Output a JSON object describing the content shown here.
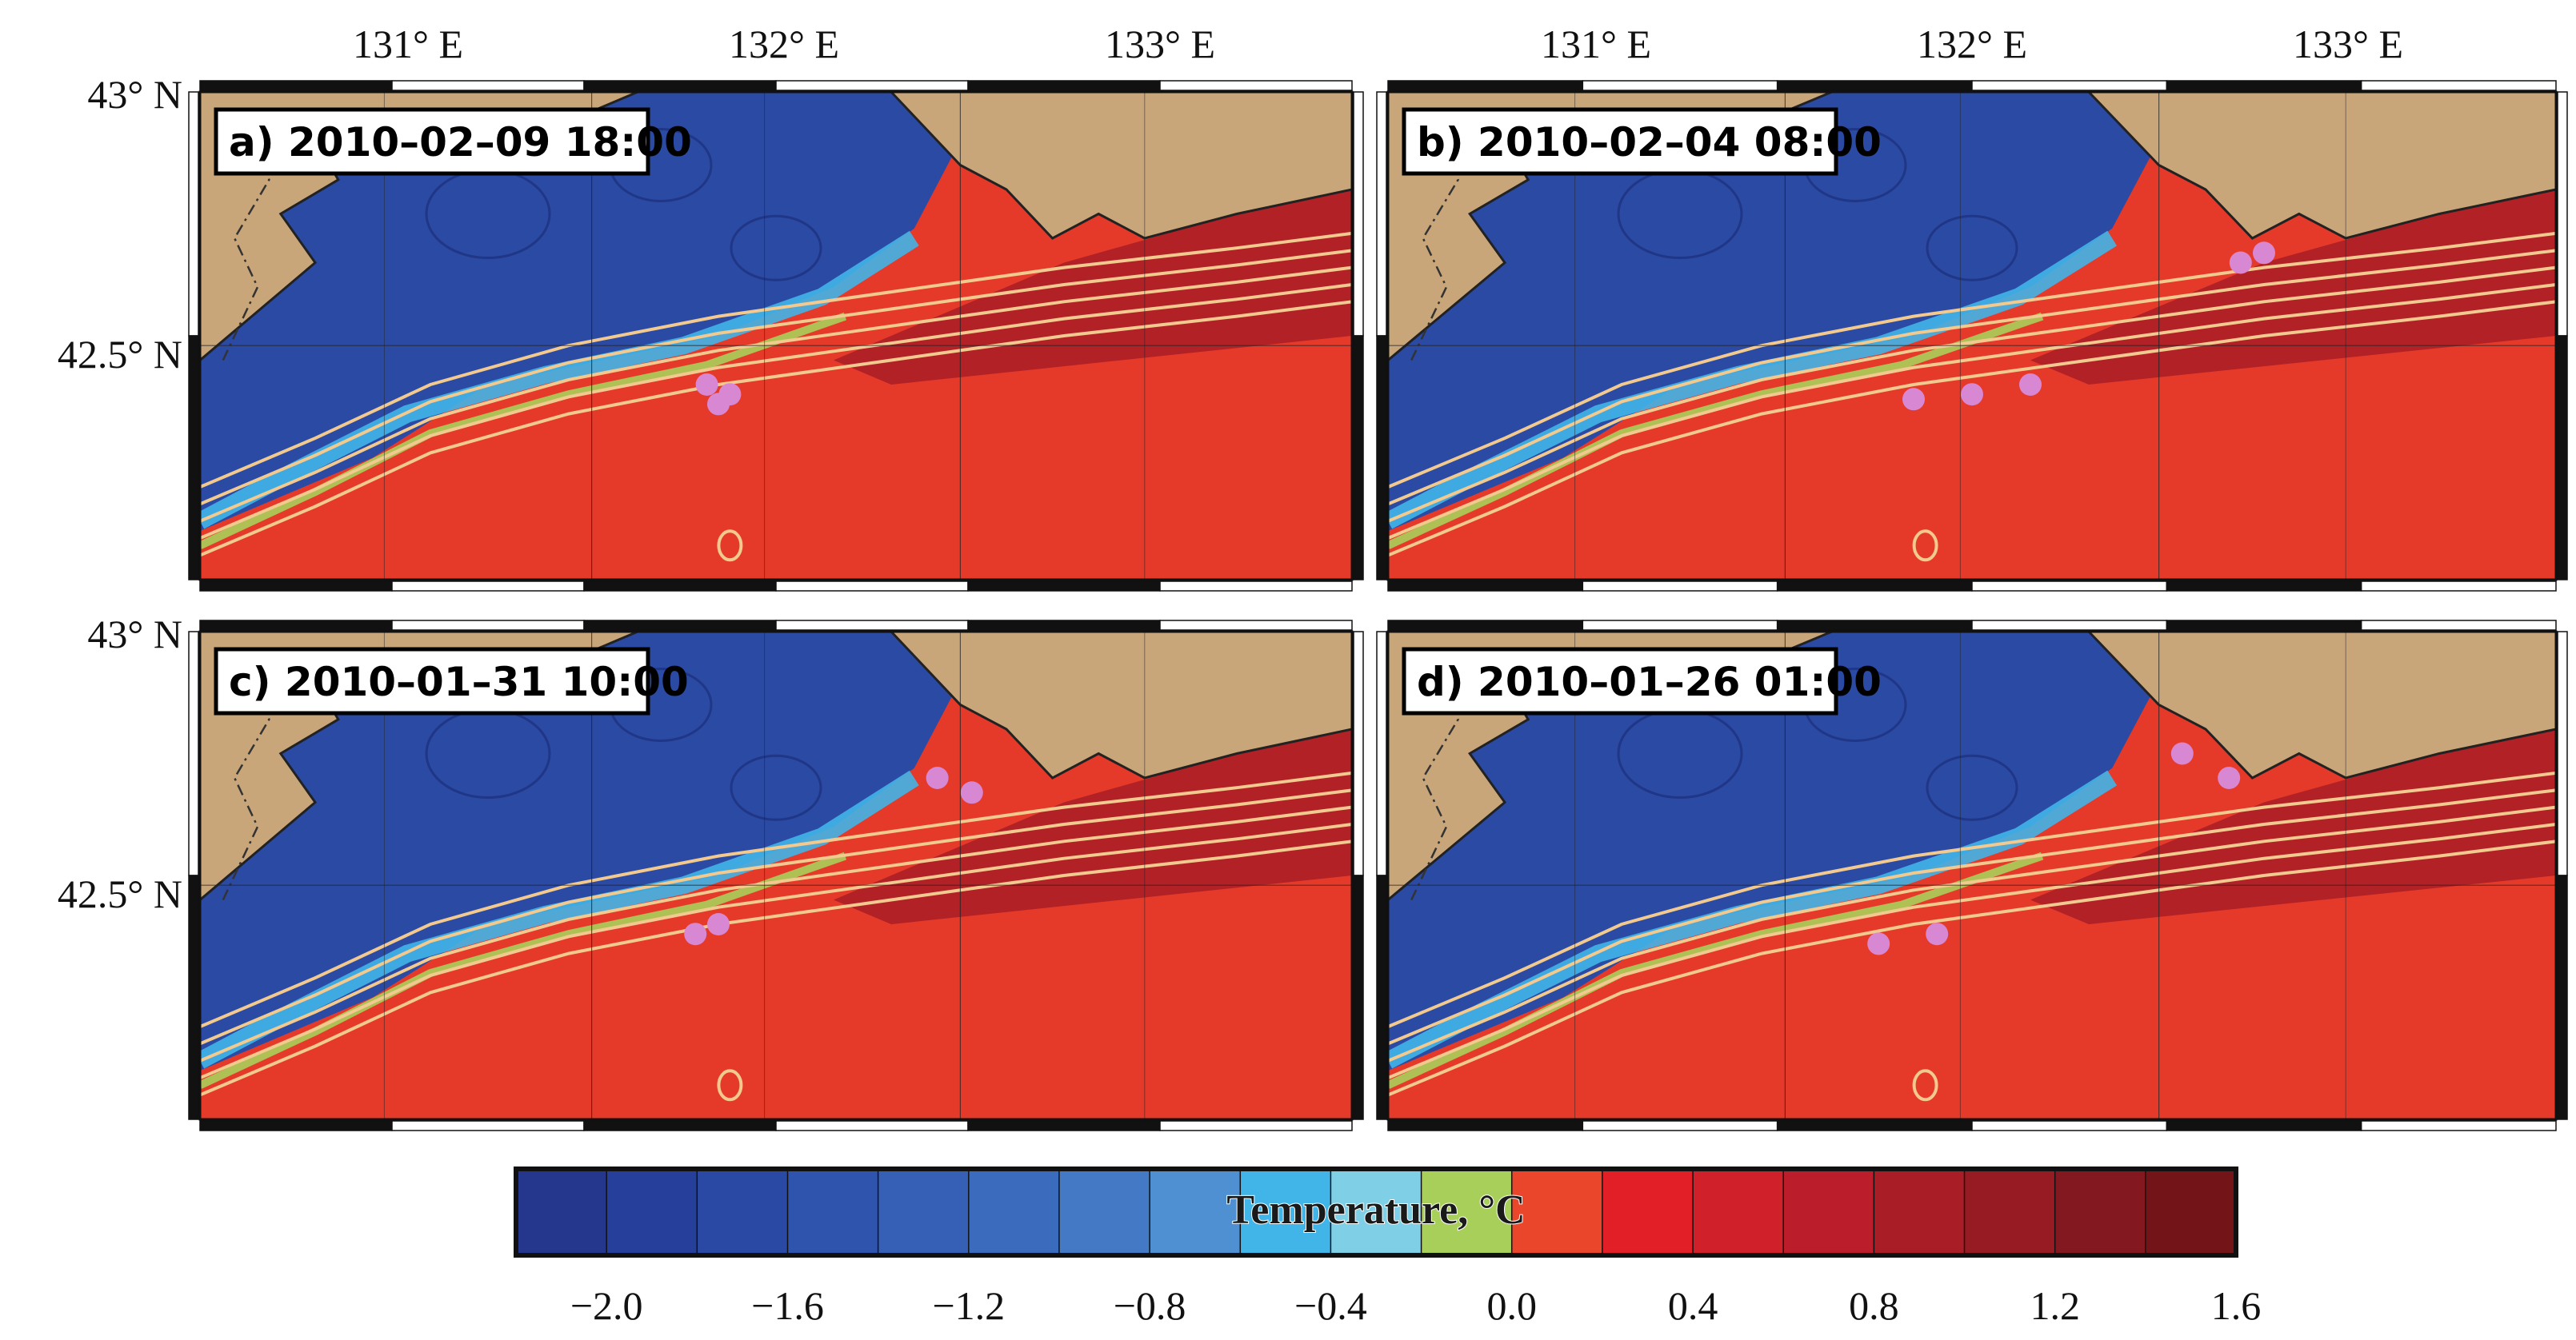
{
  "figure": {
    "longitude_ticks": [
      "131° E",
      "132° E",
      "133° E"
    ],
    "latitude_ticks": [
      "43° N",
      "42.5° N"
    ]
  },
  "panels": [
    {
      "id": "a",
      "label": "a) 2010–02–09 18:00"
    },
    {
      "id": "b",
      "label": "b) 2010–02–04 08:00"
    },
    {
      "id": "c",
      "label": "c) 2010–01–31 10:00"
    },
    {
      "id": "d",
      "label": "d) 2010–01–26 01:00"
    }
  ],
  "colorbar": {
    "title": "Temperature, °C",
    "tick_labels": [
      "−2.0",
      "−1.6",
      "−1.2",
      "−0.8",
      "−0.4",
      "0.0",
      "0.4",
      "0.8",
      "1.2",
      "1.6"
    ],
    "min": -2.2,
    "max": 1.6,
    "step": 0.2,
    "colors": [
      "#25378d",
      "#263f9a",
      "#2a49a4",
      "#2e54ad",
      "#3560b5",
      "#3b6bbd",
      "#4479c5",
      "#4f90d2",
      "#41b5e8",
      "#7fd0e6",
      "#a8cf5a",
      "#e9462c",
      "#e21f26",
      "#d0202a",
      "#bb1e2a",
      "#a81d26",
      "#961b23",
      "#841820",
      "#731419"
    ]
  },
  "colors": {
    "land": "#c9a67a",
    "cold_water": "#2a4aa3",
    "warm_water": "#e53a29",
    "warm_shelf": "#a81d26",
    "isotherm": "#f2c98e",
    "tracer": "#d888d2"
  }
}
